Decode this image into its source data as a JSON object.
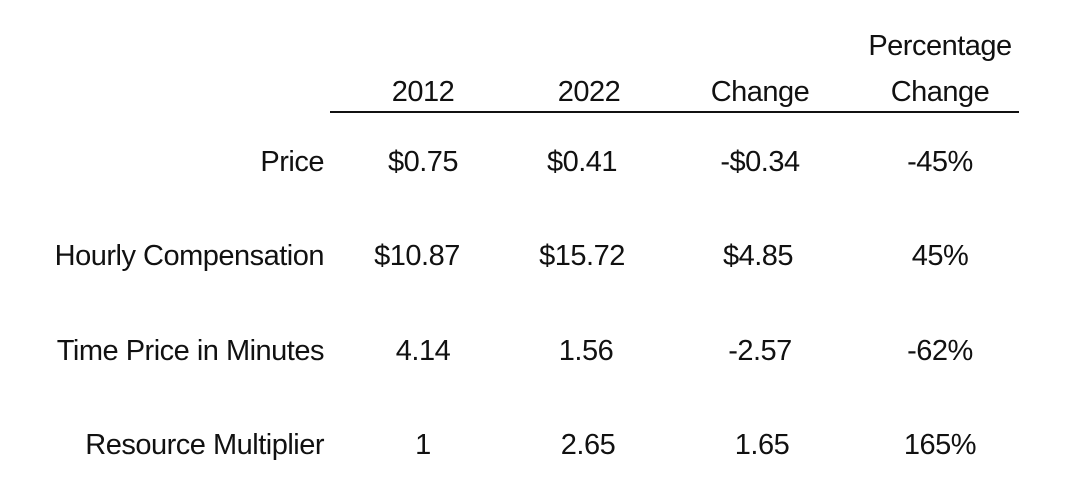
{
  "chart_data": {
    "type": "table",
    "columns": [
      "2012",
      "2022",
      "Change",
      "Percentage Change"
    ],
    "header": {
      "col1": "2012",
      "col2": "2022",
      "col3": "Change",
      "col4_line1": "Percentage",
      "col4_line2": "Change"
    },
    "rows": [
      {
        "label": "Price",
        "values": [
          "$0.75",
          "$0.41",
          "-$0.34",
          "-45%"
        ]
      },
      {
        "label": "Hourly Compensation",
        "values": [
          "$10.87",
          "$15.72",
          "$4.85",
          "45%"
        ]
      },
      {
        "label": "Time Price in Minutes",
        "values": [
          "4.14",
          "1.56",
          "-2.57",
          "-62%"
        ]
      },
      {
        "label": "Resource Multiplier",
        "values": [
          "1",
          "2.65",
          "1.65",
          "165%"
        ]
      }
    ]
  }
}
